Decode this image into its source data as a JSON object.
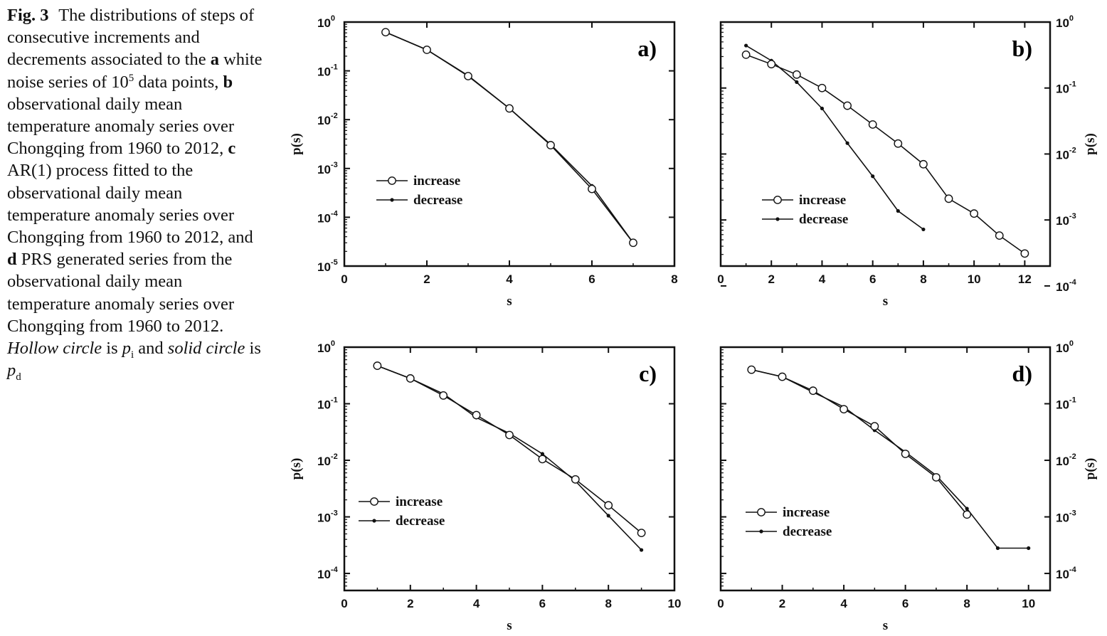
{
  "caption": {
    "fig_label": "Fig. 3",
    "t1": "The distributions of steps of consecutive increments and decrements associated to the",
    "b_a": "a",
    "t2": "white noise series of 10",
    "t2_sup": "5",
    "t3": "data points,",
    "b_b": "b",
    "t4": "observational daily mean temperature anomaly series over Chongqing from 1960 to 2012,",
    "b_c": "c",
    "t5": "AR(1) process fitted to the observational daily mean temperature anomaly series over Chongqing from 1960 to 2012, and",
    "b_d": "d",
    "t6": "PRS generated series from the observational daily mean temperature anomaly series over Chongqing from 1960 to 2012.",
    "i1": "Hollow circle",
    "t7": "is",
    "p_i": "p",
    "p_i_sub": "i",
    "t8": "and",
    "i2": "solid circle",
    "t9": "is",
    "p_d": "p",
    "p_d_sub": "d"
  },
  "chart_data": [
    {
      "type": "line",
      "panel_label": "a)",
      "xlabel": "s",
      "ylabel": "p(s)",
      "ylabel_side": "left",
      "y_scale": "log",
      "xlim": [
        0,
        8
      ],
      "ylim": [
        1e-05,
        1
      ],
      "x_ticks": [
        0,
        2,
        4,
        6,
        8
      ],
      "y_ticks": [
        "10^0",
        "10^-1",
        "10^-2",
        "10^-3",
        "10^-4",
        "10^-5"
      ],
      "legend_position": "lower-left",
      "series": [
        {
          "name": "increase",
          "marker": "hollow-circle",
          "x": [
            1,
            2,
            3,
            4,
            5,
            6,
            7
          ],
          "y": [
            0.62,
            0.27,
            0.078,
            0.017,
            0.003,
            0.00038,
            3e-05
          ]
        },
        {
          "name": "decrease",
          "marker": "solid-circle",
          "x": [
            1,
            2,
            3,
            4,
            5,
            6,
            7
          ],
          "y": [
            0.62,
            0.27,
            0.08,
            0.017,
            0.0031,
            0.00044,
            3e-05
          ]
        }
      ]
    },
    {
      "type": "line",
      "panel_label": "b)",
      "xlabel": "s",
      "ylabel": "p(s)",
      "ylabel_side": "right",
      "y_scale": "log",
      "xlim": [
        0,
        13
      ],
      "ylim": [
        0.0002,
        1
      ],
      "x_ticks": [
        0,
        2,
        4,
        6,
        8,
        10,
        12
      ],
      "y_ticks": [
        "10^0",
        "10^-1",
        "10^-2",
        "10^-3",
        "10^-4"
      ],
      "legend_position": "lower-left",
      "series": [
        {
          "name": "increase",
          "marker": "hollow-circle",
          "x": [
            1,
            2,
            3,
            4,
            5,
            6,
            7,
            8,
            9,
            10,
            11,
            12
          ],
          "y": [
            0.32,
            0.23,
            0.16,
            0.1,
            0.054,
            0.028,
            0.0144,
            0.007,
            0.0021,
            0.00125,
            0.00058,
            0.00031
          ]
        },
        {
          "name": "decrease",
          "marker": "solid-circle",
          "x": [
            1,
            2,
            3,
            4,
            5,
            6,
            7,
            8
          ],
          "y": [
            0.44,
            0.26,
            0.123,
            0.049,
            0.0146,
            0.0046,
            0.00137,
            0.00072
          ]
        }
      ]
    },
    {
      "type": "line",
      "panel_label": "c)",
      "xlabel": "s",
      "ylabel": "p(s)",
      "ylabel_side": "left",
      "y_scale": "log",
      "xlim": [
        0,
        10
      ],
      "ylim": [
        5e-05,
        1
      ],
      "x_ticks": [
        0,
        2,
        4,
        6,
        8,
        10
      ],
      "y_ticks": [
        "10^0",
        "10^-1",
        "10^-2",
        "10^-3",
        "10^-4"
      ],
      "legend_position": "lower-left",
      "series": [
        {
          "name": "increase",
          "marker": "hollow-circle",
          "x": [
            1,
            2,
            3,
            4,
            5,
            6,
            7,
            8,
            9
          ],
          "y": [
            0.47,
            0.28,
            0.14,
            0.063,
            0.028,
            0.0105,
            0.0046,
            0.0016,
            0.00052
          ]
        },
        {
          "name": "decrease",
          "marker": "solid-circle",
          "x": [
            1,
            2,
            3,
            4,
            5,
            6,
            7,
            8,
            9
          ],
          "y": [
            0.47,
            0.28,
            0.15,
            0.057,
            0.03,
            0.013,
            0.0043,
            0.00105,
            0.00026
          ]
        }
      ]
    },
    {
      "type": "line",
      "panel_label": "d)",
      "xlabel": "s",
      "ylabel": "p(s)",
      "ylabel_side": "right",
      "y_scale": "log",
      "xlim": [
        0,
        10.7
      ],
      "ylim": [
        5e-05,
        1
      ],
      "x_ticks": [
        0,
        2,
        4,
        6,
        8,
        10
      ],
      "y_ticks": [
        "10^0",
        "10^-1",
        "10^-2",
        "10^-3",
        "10^-4"
      ],
      "legend_position": "lower-left",
      "series": [
        {
          "name": "increase",
          "marker": "hollow-circle",
          "x": [
            1,
            2,
            3,
            4,
            5,
            6,
            7,
            8
          ],
          "y": [
            0.4,
            0.3,
            0.17,
            0.08,
            0.04,
            0.013,
            0.005,
            0.0011
          ]
        },
        {
          "name": "decrease",
          "marker": "solid-circle",
          "x": [
            1,
            2,
            3,
            4,
            5,
            6,
            7,
            8,
            9,
            10
          ],
          "y": [
            0.4,
            0.3,
            0.16,
            0.088,
            0.034,
            0.014,
            0.0054,
            0.0014,
            0.00028,
            0.00028
          ]
        }
      ]
    }
  ]
}
